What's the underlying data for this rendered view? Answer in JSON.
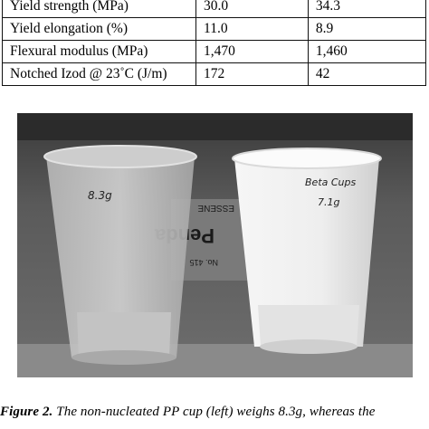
{
  "table": {
    "rows": [
      {
        "property": "Yield strength (MPa)",
        "left": "30.0",
        "right": "34.3"
      },
      {
        "property": "Yield elongation (%)",
        "left": "11.0",
        "right": "8.9"
      },
      {
        "property": "Flexural modulus (MPa)",
        "left": "1,470",
        "right": "1,460"
      },
      {
        "property": "Notched Izod @ 23˚C (J/m)",
        "left": "172",
        "right": "42"
      }
    ]
  },
  "photo": {
    "left_cup_text": "8.3g",
    "right_cup_text_1": "Beta Cups",
    "right_cup_text_2": "7.1g",
    "box_text_1": "ESSENE",
    "box_text_2": "Penda",
    "box_text_3": "No. 415"
  },
  "caption": {
    "label": "Figure 2.",
    "text": " The non-nucleated PP cup (left) weighs 8.3g, whereas the"
  }
}
